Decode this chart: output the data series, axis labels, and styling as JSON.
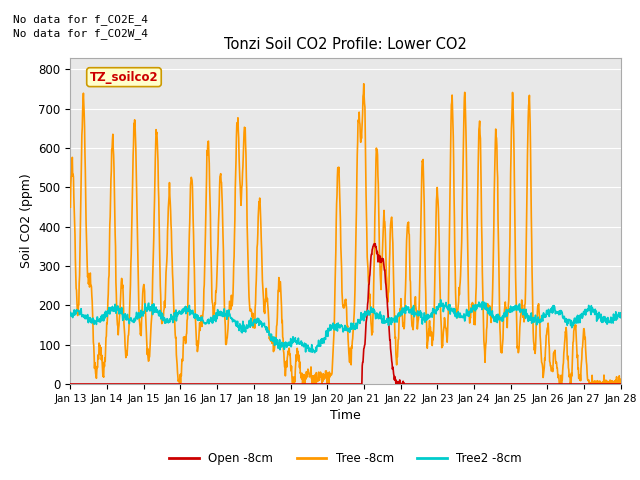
{
  "title": "Tonzi Soil CO2 Profile: Lower CO2",
  "xlabel": "Time",
  "ylabel": "Soil CO2 (ppm)",
  "ylim": [
    0,
    830
  ],
  "yticks": [
    0,
    100,
    200,
    300,
    400,
    500,
    600,
    700,
    800
  ],
  "xtick_labels": [
    "Jan 13",
    "Jan 14",
    "Jan 15",
    "Jan 16",
    "Jan 17",
    "Jan 18",
    "Jan 19",
    "Jan 20",
    "Jan 21",
    "Jan 22",
    "Jan 23",
    "Jan 24",
    "Jan 25",
    "Jan 26",
    "Jan 27",
    "Jan 28"
  ],
  "no_data_text1": "No data for f_CO2E_4",
  "no_data_text2": "No data for f_CO2W_4",
  "watermark": "TZ_soilco2",
  "legend_entries": [
    "Open -8cm",
    "Tree -8cm",
    "Tree2 -8cm"
  ],
  "colors": {
    "open": "#cc0000",
    "tree": "#ff9900",
    "tree2": "#00cccc",
    "background": "#e8e8e8",
    "watermark_bg": "#ffffcc",
    "watermark_border": "#cc9900",
    "watermark_text": "#cc0000"
  },
  "line_widths": {
    "open": 1.2,
    "tree": 1.2,
    "tree2": 1.2
  },
  "num_days": 15,
  "points_per_day": 96,
  "figsize": [
    6.4,
    4.8
  ],
  "dpi": 100
}
